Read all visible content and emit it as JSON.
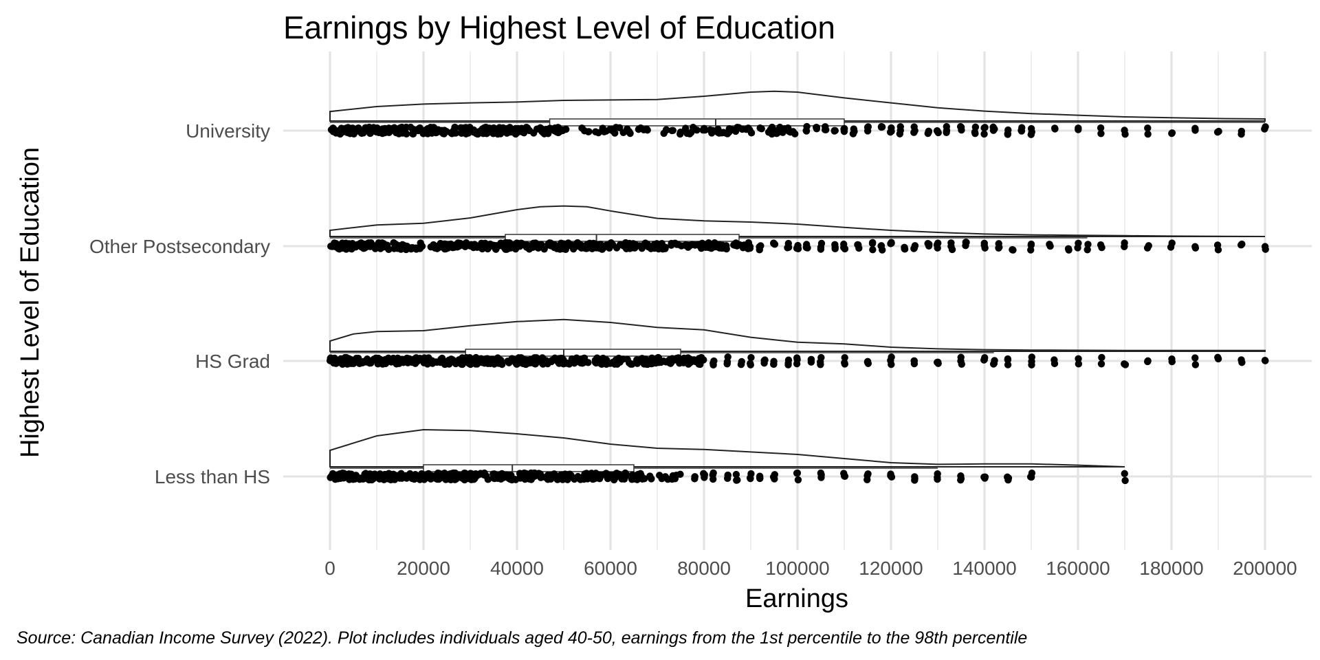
{
  "chart_data": {
    "type": "raincloud",
    "title": "Earnings by Highest Level of Education",
    "xlabel": "Earnings",
    "ylabel": "Highest Level of Education",
    "caption": "Source: Canadian Income Survey (2022). Plot includes individuals aged 40-50, earnings from the 1st percentile to the 98th percentile",
    "xlim": [
      0,
      200000
    ],
    "x_ticks": [
      0,
      20000,
      40000,
      60000,
      80000,
      100000,
      120000,
      140000,
      160000,
      180000,
      200000
    ],
    "tick_labels": [
      "0",
      "20000",
      "40000",
      "60000",
      "80000",
      "100000",
      "120000",
      "140000",
      "160000",
      "180000",
      "200000"
    ],
    "grid": true,
    "legend": "none",
    "categories": [
      "University",
      "Other Postsecondary",
      "HS Grad",
      "Less than HS"
    ],
    "series": [
      {
        "category": "University",
        "max_x": 200000,
        "box": {
          "min": 0,
          "q1": 47000,
          "median": 82500,
          "q3": 110000,
          "max": 200000
        },
        "density": [
          [
            0,
            0.23
          ],
          [
            10000,
            0.35
          ],
          [
            20000,
            0.41
          ],
          [
            30000,
            0.44
          ],
          [
            40000,
            0.46
          ],
          [
            50000,
            0.5
          ],
          [
            60000,
            0.51
          ],
          [
            70000,
            0.52
          ],
          [
            80000,
            0.6
          ],
          [
            90000,
            0.7
          ],
          [
            95000,
            0.72
          ],
          [
            100000,
            0.7
          ],
          [
            110000,
            0.56
          ],
          [
            120000,
            0.44
          ],
          [
            130000,
            0.32
          ],
          [
            140000,
            0.24
          ],
          [
            150000,
            0.18
          ],
          [
            160000,
            0.14
          ],
          [
            170000,
            0.1
          ],
          [
            180000,
            0.08
          ],
          [
            190000,
            0.06
          ],
          [
            200000,
            0.05
          ]
        ],
        "dense_ranges": [
          [
            0,
            50000
          ],
          [
            50000,
            100000
          ]
        ],
        "outlier_points": [
          102000,
          104000,
          106000,
          108000,
          110000,
          112000,
          115000,
          118000,
          120000,
          122000,
          125000,
          128000,
          130000,
          132000,
          135000,
          138000,
          140000,
          142000,
          145000,
          148000,
          150000,
          155000,
          160000,
          165000,
          170000,
          175000,
          180000,
          185000,
          190000,
          195000,
          200000
        ]
      },
      {
        "category": "Other Postsecondary",
        "max_x": 200000,
        "box": {
          "min": 0,
          "q1": 37500,
          "median": 57000,
          "q3": 87500,
          "max": 162000
        },
        "density": [
          [
            0,
            0.15
          ],
          [
            10000,
            0.28
          ],
          [
            20000,
            0.32
          ],
          [
            30000,
            0.45
          ],
          [
            40000,
            0.65
          ],
          [
            45000,
            0.72
          ],
          [
            50000,
            0.74
          ],
          [
            55000,
            0.72
          ],
          [
            60000,
            0.62
          ],
          [
            70000,
            0.44
          ],
          [
            80000,
            0.38
          ],
          [
            90000,
            0.35
          ],
          [
            100000,
            0.3
          ],
          [
            110000,
            0.22
          ],
          [
            120000,
            0.15
          ],
          [
            130000,
            0.1
          ],
          [
            140000,
            0.06
          ],
          [
            150000,
            0.04
          ],
          [
            160000,
            0.03
          ],
          [
            170000,
            0.02
          ],
          [
            180000,
            0.01
          ],
          [
            200000,
            0.0
          ]
        ],
        "dense_ranges": [
          [
            0,
            60000
          ],
          [
            60000,
            90000
          ]
        ],
        "outlier_points": [
          92000,
          95000,
          98000,
          100000,
          102000,
          105000,
          108000,
          110000,
          113000,
          116000,
          118000,
          120000,
          123000,
          125000,
          128000,
          130000,
          133000,
          136000,
          140000,
          143000,
          146000,
          150000,
          154000,
          158000,
          160000,
          162000,
          165000,
          170000,
          175000,
          180000,
          185000,
          190000,
          195000,
          200000
        ]
      },
      {
        "category": "HS Grad",
        "max_x": 200000,
        "box": {
          "min": 0,
          "q1": 29000,
          "median": 50000,
          "q3": 75000,
          "max": 142000
        },
        "density": [
          [
            0,
            0.25
          ],
          [
            5000,
            0.42
          ],
          [
            10000,
            0.48
          ],
          [
            20000,
            0.5
          ],
          [
            30000,
            0.62
          ],
          [
            40000,
            0.72
          ],
          [
            50000,
            0.77
          ],
          [
            60000,
            0.7
          ],
          [
            70000,
            0.58
          ],
          [
            80000,
            0.52
          ],
          [
            90000,
            0.34
          ],
          [
            100000,
            0.22
          ],
          [
            110000,
            0.18
          ],
          [
            120000,
            0.1
          ],
          [
            130000,
            0.06
          ],
          [
            140000,
            0.04
          ],
          [
            150000,
            0.03
          ],
          [
            170000,
            0.02
          ],
          [
            200000,
            0.02
          ]
        ],
        "dense_ranges": [
          [
            0,
            55000
          ],
          [
            55000,
            80000
          ]
        ],
        "outlier_points": [
          82000,
          85000,
          88000,
          90000,
          93000,
          95000,
          98000,
          100000,
          103000,
          105000,
          110000,
          115000,
          120000,
          125000,
          130000,
          135000,
          140000,
          142000,
          145000,
          150000,
          155000,
          160000,
          165000,
          170000,
          175000,
          180000,
          185000,
          190000,
          195000,
          200000
        ]
      },
      {
        "category": "Less than HS",
        "max_x": 170000,
        "box": {
          "min": 0,
          "q1": 20000,
          "median": 39000,
          "q3": 65000,
          "max": 130000
        },
        "density": [
          [
            0,
            0.4
          ],
          [
            10000,
            0.75
          ],
          [
            20000,
            0.9
          ],
          [
            30000,
            0.88
          ],
          [
            40000,
            0.8
          ],
          [
            50000,
            0.7
          ],
          [
            60000,
            0.55
          ],
          [
            70000,
            0.45
          ],
          [
            80000,
            0.42
          ],
          [
            90000,
            0.36
          ],
          [
            100000,
            0.3
          ],
          [
            110000,
            0.2
          ],
          [
            120000,
            0.1
          ],
          [
            130000,
            0.06
          ],
          [
            140000,
            0.07
          ],
          [
            150000,
            0.07
          ],
          [
            160000,
            0.04
          ],
          [
            170000,
            0.0
          ]
        ],
        "dense_ranges": [
          [
            0,
            45000
          ],
          [
            45000,
            75000
          ]
        ],
        "outlier_points": [
          78000,
          80000,
          82000,
          85000,
          87000,
          90000,
          92000,
          95000,
          100000,
          105000,
          110000,
          115000,
          120000,
          125000,
          130000,
          135000,
          140000,
          145000,
          150000,
          170000
        ]
      }
    ]
  }
}
